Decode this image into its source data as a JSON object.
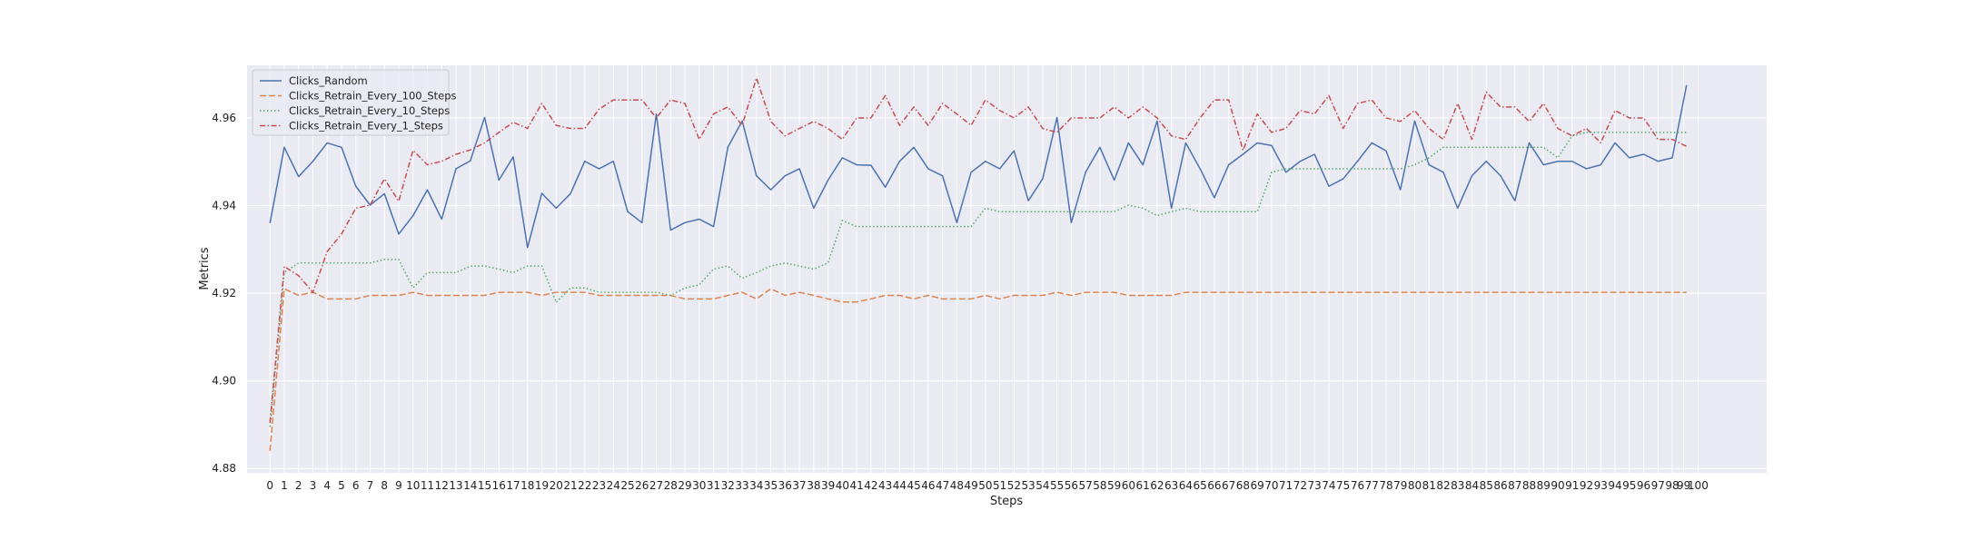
{
  "chart_data": {
    "type": "line",
    "xlabel": "Steps",
    "ylabel": "Metrics",
    "xlim": [
      -1.6,
      104.6
    ],
    "ylim": [
      4.879,
      4.972
    ],
    "x_ticks": [
      0,
      1,
      2,
      3,
      4,
      5,
      6,
      7,
      8,
      9,
      10,
      11,
      12,
      13,
      14,
      15,
      16,
      17,
      18,
      19,
      20,
      21,
      22,
      23,
      24,
      25,
      26,
      27,
      28,
      29,
      30,
      31,
      32,
      33,
      34,
      35,
      36,
      37,
      38,
      39,
      40,
      41,
      42,
      43,
      44,
      45,
      46,
      47,
      48,
      49,
      50,
      51,
      52,
      53,
      54,
      55,
      56,
      57,
      58,
      59,
      60,
      61,
      62,
      63,
      64,
      65,
      66,
      67,
      68,
      69,
      70,
      71,
      72,
      73,
      74,
      75,
      76,
      77,
      78,
      79,
      80,
      81,
      82,
      83,
      84,
      85,
      86,
      87,
      88,
      89,
      90,
      91,
      92,
      93,
      94,
      95,
      96,
      97,
      98,
      99,
      100
    ],
    "x_tick_labels": [
      "0",
      "1",
      "2",
      "3",
      "4",
      "5",
      "6",
      "7",
      "8",
      "9",
      "10",
      "11",
      "12",
      "13",
      "14",
      "15",
      "16",
      "17",
      "18",
      "19",
      "20",
      "21",
      "22",
      "23",
      "24",
      "25",
      "26",
      "27",
      "28",
      "29",
      "30",
      "31",
      "32",
      "33",
      "34",
      "35",
      "36",
      "37",
      "38",
      "39",
      "40",
      "41",
      "42",
      "43",
      "44",
      "45",
      "46",
      "47",
      "48",
      "49",
      "50",
      "51",
      "52",
      "53",
      "54",
      "55",
      "56",
      "57",
      "58",
      "59",
      "60",
      "61",
      "62",
      "63",
      "64",
      "65",
      "66",
      "67",
      "68",
      "69",
      "70",
      "71",
      "72",
      "73",
      "74",
      "75",
      "76",
      "77",
      "78",
      "79",
      "80",
      "81",
      "82",
      "83",
      "84",
      "85",
      "86",
      "87",
      "88",
      "89",
      "90",
      "91",
      "92",
      "93",
      "94",
      "95",
      "96",
      "97",
      "98",
      "99",
      "100"
    ],
    "x_tick_positions": [
      0,
      1,
      2,
      3,
      4,
      5,
      6,
      7,
      8,
      9,
      10,
      11,
      12,
      13,
      14,
      15,
      16,
      17,
      18,
      19,
      20,
      21,
      22,
      23,
      24,
      25,
      26,
      27,
      28,
      29,
      30,
      31,
      32,
      33,
      34,
      35,
      36,
      37,
      38,
      39,
      40,
      41,
      42,
      43,
      44,
      45,
      46,
      47,
      48,
      49,
      50,
      51,
      52,
      53,
      54,
      55,
      56,
      57,
      58,
      59,
      60,
      61,
      62,
      63,
      64,
      65,
      66,
      67,
      68,
      69,
      70,
      71,
      72,
      73,
      74,
      75,
      76,
      77,
      78,
      79,
      80,
      81,
      82,
      83,
      84,
      85,
      86,
      87,
      88,
      89,
      90,
      91,
      92,
      93,
      94,
      95,
      96,
      97,
      98,
      98.8,
      99.8
    ],
    "y_ticks": [
      4.88,
      4.9,
      4.92,
      4.94,
      4.96
    ],
    "y_tick_labels": [
      "4.88",
      "4.90",
      "4.92",
      "4.94",
      "4.96"
    ],
    "grid": true,
    "legend_position": "upper-left",
    "series": [
      {
        "name": "Clicks_Random",
        "color": "#4c72b0",
        "style": "solid",
        "x": [
          0,
          1,
          2,
          3,
          4,
          5,
          6,
          7,
          8,
          9,
          10,
          11,
          12,
          13,
          14,
          15,
          16,
          17,
          18,
          19,
          20,
          21,
          22,
          23,
          24,
          25,
          26,
          27,
          28,
          29,
          30,
          31,
          32,
          33,
          34,
          35,
          36,
          37,
          38,
          39,
          40,
          41,
          42,
          43,
          44,
          45,
          46,
          47,
          48,
          49,
          50,
          51,
          52,
          53,
          54,
          55,
          56,
          57,
          58,
          59,
          60,
          61,
          62,
          63,
          64,
          65,
          66,
          67,
          68,
          69,
          70,
          71,
          72,
          73,
          74,
          75,
          76,
          77,
          78,
          79,
          80,
          81,
          82,
          83,
          84,
          85,
          86,
          87,
          88,
          89,
          90,
          91,
          92,
          93,
          94,
          95,
          96,
          97,
          98,
          99
        ],
        "values": [
          4.936,
          4.9533,
          4.9466,
          4.9501,
          4.9543,
          4.9533,
          4.9444,
          4.9401,
          4.9427,
          4.9335,
          4.9377,
          4.9436,
          4.9369,
          4.9484,
          4.9502,
          4.9601,
          4.9458,
          4.9511,
          4.9304,
          4.9428,
          4.9394,
          4.9427,
          4.9501,
          4.9484,
          4.9501,
          4.9386,
          4.9361,
          4.9609,
          4.9344,
          4.9361,
          4.9369,
          4.9352,
          4.9533,
          4.9593,
          4.9468,
          4.9436,
          4.9468,
          4.9484,
          4.9394,
          4.9458,
          4.9509,
          4.9493,
          4.9492,
          4.9442,
          4.9501,
          4.9533,
          4.9484,
          4.9468,
          4.9361,
          4.9476,
          4.9501,
          4.9484,
          4.9525,
          4.9411,
          4.9461,
          4.9601,
          4.9361,
          4.9476,
          4.9533,
          4.9458,
          4.9543,
          4.9493,
          4.9593,
          4.9394,
          4.9543,
          4.9484,
          4.9418,
          4.9493,
          4.9517,
          4.9543,
          4.9537,
          4.9476,
          4.9501,
          4.9517,
          4.9444,
          4.9461,
          4.9501,
          4.9543,
          4.9525,
          4.9436,
          4.9593,
          4.9493,
          4.9476,
          4.9394,
          4.9468,
          4.9501,
          4.9468,
          4.9411,
          4.9543,
          4.9493,
          4.9501,
          4.9501,
          4.9484,
          4.9493,
          4.9543,
          4.9509,
          4.9517,
          4.9501,
          4.9509,
          4.9675
        ]
      },
      {
        "name": "Clicks_Retrain_Every_100_Steps",
        "color": "#dd8452",
        "style": "dashed",
        "x": [
          0,
          1,
          2,
          3,
          4,
          5,
          6,
          7,
          8,
          9,
          10,
          11,
          12,
          13,
          14,
          15,
          16,
          17,
          18,
          19,
          20,
          21,
          22,
          23,
          24,
          25,
          26,
          27,
          28,
          29,
          30,
          31,
          32,
          33,
          34,
          35,
          36,
          37,
          38,
          39,
          40,
          41,
          42,
          43,
          44,
          45,
          46,
          47,
          48,
          49,
          50,
          51,
          52,
          53,
          54,
          55,
          56,
          57,
          58,
          59,
          60,
          61,
          62,
          63,
          64,
          65,
          66,
          67,
          68,
          69,
          70,
          71,
          72,
          73,
          74,
          75,
          76,
          77,
          78,
          79,
          80,
          81,
          82,
          83,
          84,
          85,
          86,
          87,
          88,
          89,
          90,
          91,
          92,
          93,
          94,
          95,
          96,
          97,
          98,
          99
        ],
        "values": [
          4.884,
          4.921,
          4.9195,
          4.9202,
          4.9187,
          4.9187,
          4.9187,
          4.9195,
          4.9195,
          4.9195,
          4.9202,
          4.9195,
          4.9195,
          4.9195,
          4.9195,
          4.9195,
          4.9202,
          4.9202,
          4.9202,
          4.9195,
          4.9202,
          4.9202,
          4.9202,
          4.9195,
          4.9195,
          4.9195,
          4.9195,
          4.9195,
          4.9195,
          4.9187,
          4.9187,
          4.9187,
          4.9195,
          4.9202,
          4.9187,
          4.921,
          4.9195,
          4.9202,
          4.9195,
          4.9187,
          4.918,
          4.918,
          4.9187,
          4.9195,
          4.9195,
          4.9187,
          4.9195,
          4.9187,
          4.9187,
          4.9187,
          4.9195,
          4.9187,
          4.9195,
          4.9195,
          4.9195,
          4.9202,
          4.9195,
          4.9202,
          4.9202,
          4.9202,
          4.9195,
          4.9195,
          4.9195,
          4.9195,
          4.9202,
          4.9202,
          4.9202,
          4.9202,
          4.9202,
          4.9202,
          4.9202,
          4.9202,
          4.9202,
          4.9202,
          4.9202,
          4.9202,
          4.9202,
          4.9202,
          4.9202,
          4.9202,
          4.9202,
          4.9202,
          4.9202,
          4.9202,
          4.9202,
          4.9202,
          4.9202,
          4.9202,
          4.9202,
          4.9202,
          4.9202,
          4.9202,
          4.9202,
          4.9202,
          4.9202,
          4.9202,
          4.9202,
          4.9202,
          4.9202,
          4.9202
        ]
      },
      {
        "name": "Clicks_Retrain_Every_10_Steps",
        "color": "#55a868",
        "style": "dotted",
        "x": [
          0,
          1,
          2,
          3,
          4,
          5,
          6,
          7,
          8,
          9,
          10,
          11,
          12,
          13,
          14,
          15,
          16,
          17,
          18,
          19,
          20,
          21,
          22,
          23,
          24,
          25,
          26,
          27,
          28,
          29,
          30,
          31,
          32,
          33,
          34,
          35,
          36,
          37,
          38,
          39,
          40,
          41,
          42,
          43,
          44,
          45,
          46,
          47,
          48,
          49,
          50,
          51,
          52,
          53,
          54,
          55,
          56,
          57,
          58,
          59,
          60,
          61,
          62,
          63,
          64,
          65,
          66,
          67,
          68,
          69,
          70,
          71,
          72,
          73,
          74,
          75,
          76,
          77,
          78,
          79,
          80,
          81,
          82,
          83,
          84,
          85,
          86,
          87,
          88,
          89,
          90,
          91,
          92,
          93,
          94,
          95,
          96,
          97,
          98,
          99
        ],
        "values": [
          4.8895,
          4.9247,
          4.9269,
          4.9269,
          4.9269,
          4.9269,
          4.9269,
          4.9269,
          4.9277,
          4.9277,
          4.9212,
          4.9247,
          4.9247,
          4.9247,
          4.9262,
          4.9262,
          4.9255,
          4.9247,
          4.9262,
          4.9262,
          4.9179,
          4.9212,
          4.9212,
          4.9202,
          4.9202,
          4.9202,
          4.9202,
          4.9202,
          4.9195,
          4.9212,
          4.9219,
          4.9255,
          4.9262,
          4.9234,
          4.9247,
          4.9262,
          4.9269,
          4.9262,
          4.9255,
          4.9269,
          4.9366,
          4.9352,
          4.9352,
          4.9352,
          4.9352,
          4.9352,
          4.9352,
          4.9352,
          4.9352,
          4.9352,
          4.9394,
          4.9386,
          4.9386,
          4.9386,
          4.9386,
          4.9386,
          4.9386,
          4.9386,
          4.9386,
          4.9386,
          4.9401,
          4.9394,
          4.9377,
          4.9386,
          4.9394,
          4.9386,
          4.9386,
          4.9386,
          4.9386,
          4.9386,
          4.9476,
          4.9484,
          4.9484,
          4.9484,
          4.9484,
          4.9484,
          4.9484,
          4.9484,
          4.9484,
          4.9484,
          4.9493,
          4.9509,
          4.9533,
          4.9533,
          4.9533,
          4.9533,
          4.9533,
          4.9533,
          4.9533,
          4.9533,
          4.9509,
          4.9559,
          4.9567,
          4.9567,
          4.9567,
          4.9567,
          4.9567,
          4.9567,
          4.9567,
          4.9567
        ]
      },
      {
        "name": "Clicks_Retrain_Every_1_Steps",
        "color": "#c44e52",
        "style": "dashdot",
        "x": [
          0,
          1,
          2,
          3,
          4,
          5,
          6,
          7,
          8,
          9,
          10,
          11,
          12,
          13,
          14,
          15,
          16,
          17,
          18,
          19,
          20,
          21,
          22,
          23,
          24,
          25,
          26,
          27,
          28,
          29,
          30,
          31,
          32,
          33,
          34,
          35,
          36,
          37,
          38,
          39,
          40,
          41,
          42,
          43,
          44,
          45,
          46,
          47,
          48,
          49,
          50,
          51,
          52,
          53,
          54,
          55,
          56,
          57,
          58,
          59,
          60,
          61,
          62,
          63,
          64,
          65,
          66,
          67,
          68,
          69,
          70,
          71,
          72,
          73,
          74,
          75,
          76,
          77,
          78,
          79,
          80,
          81,
          82,
          83,
          84,
          85,
          86,
          87,
          88,
          89,
          90,
          91,
          92,
          93,
          94,
          95,
          96,
          97,
          98,
          99
        ],
        "values": [
          4.8905,
          4.9261,
          4.924,
          4.9202,
          4.9295,
          4.9335,
          4.9394,
          4.9401,
          4.9461,
          4.941,
          4.9526,
          4.9493,
          4.9501,
          4.9517,
          4.9527,
          4.9543,
          4.9567,
          4.959,
          4.9576,
          4.9633,
          4.9583,
          4.9576,
          4.9576,
          4.962,
          4.9641,
          4.9641,
          4.9641,
          4.96,
          4.9641,
          4.9633,
          4.9551,
          4.9609,
          4.9625,
          4.9583,
          4.9691,
          4.9592,
          4.9559,
          4.9576,
          4.9592,
          4.9576,
          4.9551,
          4.96,
          4.96,
          4.9651,
          4.9583,
          4.9625,
          4.9583,
          4.9633,
          4.9609,
          4.9583,
          4.9641,
          4.9617,
          4.96,
          4.9625,
          4.9576,
          4.9567,
          4.96,
          4.96,
          4.96,
          4.9625,
          4.96,
          4.9625,
          4.96,
          4.9559,
          4.9551,
          4.96,
          4.9641,
          4.9641,
          4.9526,
          4.9609,
          4.9567,
          4.9576,
          4.9617,
          4.9609,
          4.9651,
          4.9576,
          4.9633,
          4.9641,
          4.96,
          4.9592,
          4.9617,
          4.9576,
          4.9551,
          4.9633,
          4.9551,
          4.9659,
          4.9625,
          4.9625,
          4.9592,
          4.9633,
          4.9576,
          4.9559,
          4.9576,
          4.9543,
          4.9617,
          4.96,
          4.96,
          4.9551,
          4.9551,
          4.9535
        ]
      }
    ]
  }
}
